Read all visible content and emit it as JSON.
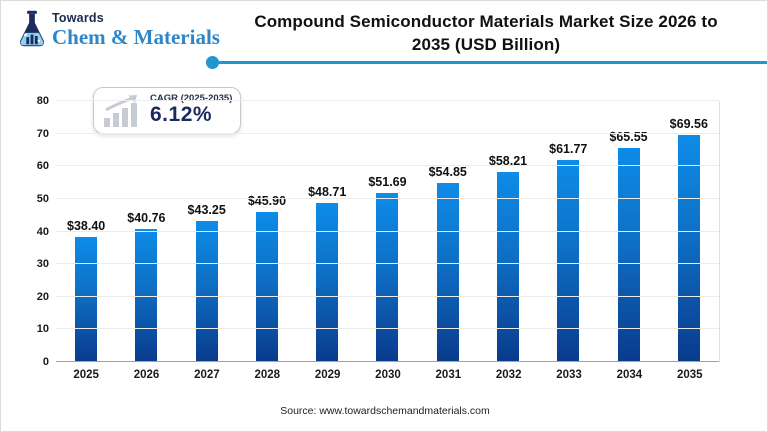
{
  "header": {
    "logo_top": "Towards",
    "logo_bottom": "Chem & Materials",
    "title": "Compound Semiconductor Materials Market Size 2026 to 2035 (USD Billion)",
    "accent_color": "#2196cf"
  },
  "badge": {
    "label": "CAGR (2025-2035)",
    "value": "6.12%"
  },
  "chart_data": {
    "type": "bar",
    "title": "Compound Semiconductor Materials Market Size 2026 to 2035 (USD Billion)",
    "categories": [
      "2025",
      "2026",
      "2027",
      "2028",
      "2029",
      "2030",
      "2031",
      "2032",
      "2033",
      "2034",
      "2035"
    ],
    "values": [
      38.4,
      40.76,
      43.25,
      45.9,
      48.71,
      51.69,
      54.85,
      58.21,
      61.77,
      65.55,
      69.56
    ],
    "value_labels": [
      "$38.40",
      "$40.76",
      "$43.25",
      "$45.90",
      "$48.71",
      "$51.69",
      "$54.85",
      "$58.21",
      "$61.77",
      "$65.55",
      "$69.56"
    ],
    "xlabel": "",
    "ylabel": "",
    "ylim": [
      0,
      80
    ],
    "yticks": [
      0,
      10,
      20,
      30,
      40,
      50,
      60,
      70,
      80
    ],
    "grid": true,
    "legend": false,
    "bar_color_top": "#0d8ce8",
    "bar_color_bottom": "#0a3a8c",
    "gridline_color": "#ececec"
  },
  "footer": {
    "source": "Source: www.towardschemandmaterials.com"
  }
}
